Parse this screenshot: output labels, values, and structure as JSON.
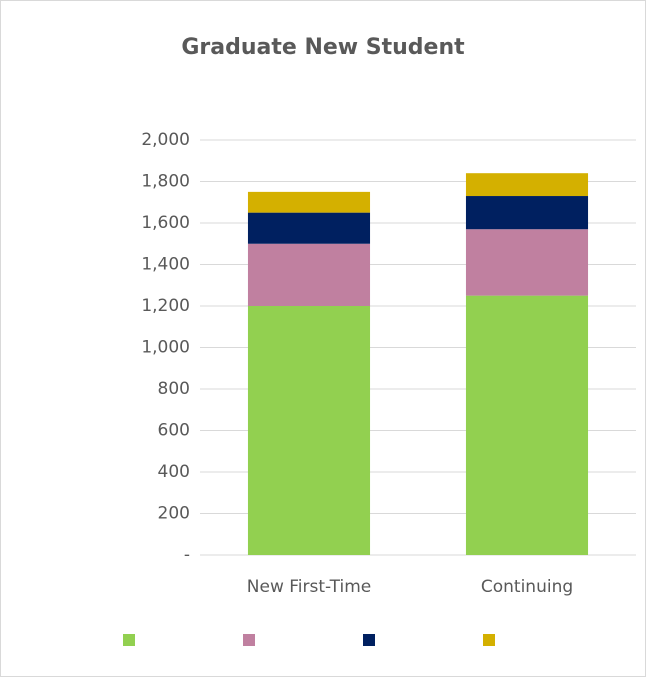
{
  "chart_data": {
    "type": "bar",
    "stacked": true,
    "title": "Graduate New Student",
    "categories": [
      "New First-Time",
      "Continuing"
    ],
    "series": [
      {
        "color": "#92d050",
        "values": [
          1200,
          1250
        ]
      },
      {
        "color": "#c080a0",
        "values": [
          300,
          320
        ]
      },
      {
        "color": "#002060",
        "values": [
          150,
          160
        ]
      },
      {
        "color": "#d4b000",
        "values": [
          100,
          110
        ]
      }
    ],
    "ylim": [
      0,
      2000
    ],
    "yticks": [
      {
        "value": 0,
        "label": "-"
      },
      200,
      400,
      600,
      800,
      {
        "value": 1000,
        "label": "1,000"
      },
      {
        "value": 1200,
        "label": "1,200"
      },
      {
        "value": 1400,
        "label": "1,400"
      },
      {
        "value": 1600,
        "label": "1,600"
      },
      {
        "value": 1800,
        "label": "1,800"
      },
      {
        "value": 2000,
        "label": "2,000"
      }
    ],
    "grid": true,
    "legend": "bottom"
  }
}
